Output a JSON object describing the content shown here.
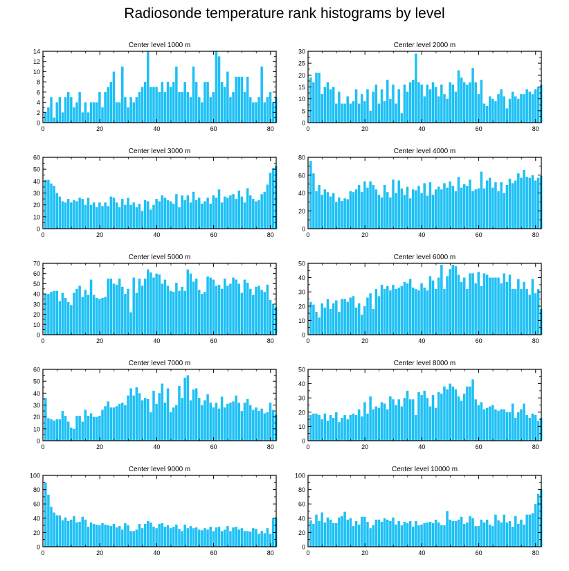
{
  "title": "Radiosonde temperature rank histograms by level",
  "bar_color": "#1ec0f5",
  "axis_color": "#000000",
  "chart_data": [
    {
      "type": "bar",
      "title": "Center level 1000 m",
      "xlim": [
        0,
        82
      ],
      "ylim": [
        0,
        14
      ],
      "xticks": [
        0,
        20,
        40,
        60,
        80
      ],
      "yticks": [
        0,
        2,
        4,
        6,
        8,
        10,
        12,
        14
      ],
      "x_start": 1,
      "values": [
        2,
        3,
        5,
        1,
        4,
        5,
        2,
        5,
        6,
        5,
        3,
        4,
        6,
        2,
        4,
        2,
        4,
        4,
        4,
        6,
        3,
        6,
        7,
        8,
        10,
        4,
        4,
        11,
        5,
        3,
        5,
        4,
        5,
        6,
        7,
        8,
        14,
        7,
        7,
        7,
        6,
        8,
        6,
        8,
        7,
        8,
        11,
        6,
        6,
        8,
        6,
        5,
        11,
        8,
        5,
        4,
        8,
        8,
        5,
        6,
        14,
        13,
        8,
        7,
        10,
        5,
        6,
        9,
        9,
        9,
        6,
        9,
        5,
        4,
        4,
        5,
        11,
        4,
        5,
        6,
        4,
        5
      ]
    },
    {
      "type": "bar",
      "title": "Center level 2000 m",
      "xlim": [
        0,
        82
      ],
      "ylim": [
        0,
        30
      ],
      "xticks": [
        0,
        20,
        40,
        60,
        80
      ],
      "yticks": [
        0,
        5,
        10,
        15,
        20,
        25,
        30
      ],
      "x_start": 1,
      "values": [
        19,
        17,
        21,
        21,
        12,
        15,
        17,
        14,
        15,
        8,
        13,
        8,
        8,
        11,
        8,
        9,
        14,
        8,
        12,
        9,
        14,
        5,
        13,
        16,
        8,
        14,
        9,
        18,
        10,
        16,
        8,
        14,
        4,
        16,
        13,
        17,
        18,
        29,
        17,
        16,
        11,
        16,
        14,
        17,
        15,
        11,
        16,
        12,
        10,
        17,
        16,
        13,
        22,
        19,
        17,
        16,
        17,
        23,
        17,
        12,
        18,
        8,
        7,
        11,
        10,
        9,
        12,
        14,
        11,
        6,
        10,
        13,
        11,
        10,
        12,
        12,
        14,
        13,
        12,
        14,
        15,
        16
      ]
    },
    {
      "type": "bar",
      "title": "Center level 3000 m",
      "xlim": [
        0,
        82
      ],
      "ylim": [
        0,
        60
      ],
      "xticks": [
        0,
        20,
        40,
        60,
        80
      ],
      "yticks": [
        0,
        10,
        20,
        30,
        40,
        50,
        60
      ],
      "x_start": 1,
      "values": [
        41,
        41,
        38,
        36,
        30,
        27,
        23,
        22,
        25,
        22,
        24,
        23,
        26,
        25,
        20,
        26,
        20,
        22,
        18,
        22,
        19,
        22,
        19,
        27,
        26,
        22,
        18,
        25,
        20,
        26,
        20,
        22,
        18,
        21,
        15,
        24,
        23,
        16,
        20,
        25,
        23,
        28,
        26,
        24,
        23,
        21,
        29,
        18,
        28,
        24,
        28,
        22,
        31,
        24,
        26,
        21,
        23,
        26,
        21,
        28,
        26,
        33,
        22,
        27,
        26,
        28,
        29,
        25,
        32,
        27,
        22,
        34,
        28,
        25,
        23,
        24,
        29,
        31,
        37,
        47,
        51,
        53
      ]
    },
    {
      "type": "bar",
      "title": "Center level 4000 m",
      "xlim": [
        0,
        82
      ],
      "ylim": [
        0,
        80
      ],
      "xticks": [
        0,
        20,
        40,
        60,
        80
      ],
      "yticks": [
        0,
        20,
        40,
        60,
        80
      ],
      "x_start": 1,
      "values": [
        76,
        62,
        42,
        49,
        38,
        44,
        41,
        36,
        40,
        30,
        35,
        31,
        34,
        33,
        42,
        41,
        44,
        49,
        41,
        53,
        46,
        53,
        49,
        44,
        38,
        35,
        49,
        41,
        35,
        55,
        40,
        54,
        45,
        38,
        47,
        34,
        44,
        43,
        48,
        40,
        51,
        37,
        52,
        38,
        44,
        47,
        44,
        51,
        46,
        53,
        48,
        42,
        58,
        46,
        50,
        48,
        55,
        42,
        44,
        45,
        64,
        45,
        54,
        57,
        46,
        52,
        42,
        52,
        40,
        49,
        56,
        51,
        54,
        62,
        57,
        66,
        58,
        57,
        60,
        54,
        57,
        59
      ]
    },
    {
      "type": "bar",
      "title": "Center level 5000 m",
      "xlim": [
        0,
        82
      ],
      "ylim": [
        0,
        70
      ],
      "xticks": [
        0,
        20,
        40,
        60,
        80
      ],
      "yticks": [
        0,
        10,
        20,
        30,
        40,
        50,
        60,
        70
      ],
      "x_start": 1,
      "values": [
        40,
        40,
        42,
        43,
        43,
        33,
        41,
        36,
        32,
        29,
        41,
        45,
        48,
        37,
        44,
        39,
        54,
        39,
        36,
        35,
        36,
        37,
        55,
        55,
        50,
        49,
        55,
        47,
        40,
        45,
        22,
        56,
        41,
        55,
        48,
        55,
        64,
        61,
        56,
        60,
        59,
        50,
        54,
        48,
        43,
        42,
        51,
        43,
        47,
        43,
        64,
        60,
        52,
        55,
        44,
        40,
        42,
        57,
        56,
        54,
        48,
        49,
        45,
        55,
        48,
        50,
        56,
        54,
        50,
        41,
        54,
        51,
        45,
        39,
        47,
        48,
        44,
        42,
        49,
        34,
        30,
        27
      ]
    },
    {
      "type": "bar",
      "title": "Center level 6000 m",
      "xlim": [
        0,
        82
      ],
      "ylim": [
        0,
        50
      ],
      "xticks": [
        0,
        20,
        40,
        60,
        80
      ],
      "yticks": [
        0,
        10,
        20,
        30,
        40,
        50
      ],
      "x_start": 1,
      "values": [
        23,
        21,
        16,
        12,
        22,
        19,
        25,
        18,
        22,
        24,
        16,
        25,
        25,
        23,
        26,
        27,
        19,
        22,
        14,
        20,
        26,
        29,
        18,
        32,
        27,
        35,
        32,
        34,
        31,
        35,
        32,
        33,
        34,
        37,
        36,
        39,
        33,
        32,
        31,
        36,
        33,
        31,
        41,
        38,
        32,
        40,
        49,
        32,
        41,
        46,
        49,
        48,
        42,
        37,
        40,
        32,
        43,
        43,
        36,
        44,
        34,
        43,
        42,
        40,
        40,
        40,
        40,
        36,
        43,
        37,
        42,
        32,
        32,
        39,
        32,
        37,
        32,
        28,
        39,
        29,
        32,
        18
      ]
    },
    {
      "type": "bar",
      "title": "Center level 7000 m",
      "xlim": [
        0,
        82
      ],
      "ylim": [
        0,
        60
      ],
      "xticks": [
        0,
        20,
        40,
        60,
        80
      ],
      "yticks": [
        0,
        10,
        20,
        30,
        40,
        50,
        60
      ],
      "x_start": 1,
      "values": [
        36,
        19,
        18,
        17,
        18,
        18,
        25,
        21,
        16,
        11,
        10,
        21,
        21,
        16,
        26,
        21,
        23,
        20,
        20,
        21,
        26,
        29,
        33,
        28,
        28,
        29,
        31,
        32,
        30,
        38,
        44,
        38,
        45,
        40,
        34,
        36,
        35,
        24,
        42,
        31,
        40,
        48,
        32,
        44,
        24,
        28,
        30,
        46,
        36,
        53,
        55,
        34,
        43,
        44,
        36,
        30,
        34,
        39,
        32,
        28,
        32,
        27,
        37,
        28,
        31,
        32,
        33,
        38,
        32,
        25,
        32,
        35,
        30,
        26,
        28,
        25,
        27,
        23,
        24,
        32,
        26,
        22
      ]
    },
    {
      "type": "bar",
      "title": "Center level 8000 m",
      "xlim": [
        0,
        82
      ],
      "ylim": [
        0,
        50
      ],
      "xticks": [
        0,
        20,
        40,
        60,
        80
      ],
      "yticks": [
        0,
        10,
        20,
        30,
        40,
        50
      ],
      "x_start": 1,
      "values": [
        18,
        19,
        19,
        18,
        15,
        19,
        14,
        18,
        16,
        20,
        13,
        16,
        18,
        15,
        18,
        19,
        18,
        22,
        17,
        27,
        19,
        31,
        22,
        24,
        23,
        27,
        26,
        22,
        31,
        29,
        25,
        29,
        24,
        30,
        35,
        29,
        29,
        18,
        34,
        32,
        35,
        30,
        24,
        32,
        23,
        34,
        33,
        38,
        36,
        40,
        38,
        36,
        31,
        28,
        33,
        38,
        38,
        43,
        29,
        25,
        27,
        22,
        23,
        24,
        25,
        22,
        21,
        22,
        22,
        20,
        20,
        26,
        16,
        20,
        22,
        26,
        18,
        16,
        19,
        18,
        14,
        16
      ]
    },
    {
      "type": "bar",
      "title": "Center level 9000 m",
      "xlim": [
        0,
        82
      ],
      "ylim": [
        0,
        100
      ],
      "xticks": [
        0,
        20,
        40,
        60,
        80
      ],
      "yticks": [
        0,
        20,
        40,
        60,
        80,
        100
      ],
      "x_start": 1,
      "values": [
        90,
        73,
        56,
        48,
        44,
        44,
        37,
        41,
        36,
        38,
        43,
        34,
        35,
        42,
        38,
        28,
        34,
        32,
        31,
        30,
        33,
        31,
        30,
        29,
        32,
        27,
        29,
        24,
        33,
        30,
        22,
        22,
        24,
        32,
        26,
        32,
        36,
        34,
        28,
        26,
        32,
        33,
        28,
        30,
        26,
        28,
        31,
        25,
        22,
        31,
        26,
        29,
        26,
        27,
        24,
        23,
        26,
        24,
        28,
        22,
        27,
        28,
        22,
        24,
        29,
        22,
        27,
        28,
        24,
        26,
        22,
        22,
        21,
        26,
        25,
        18,
        22,
        19,
        26,
        18,
        40,
        41
      ]
    },
    {
      "type": "bar",
      "title": "Center level 10000 m",
      "xlim": [
        0,
        82
      ],
      "ylim": [
        0,
        100
      ],
      "xticks": [
        0,
        20,
        40,
        60,
        80
      ],
      "yticks": [
        0,
        20,
        40,
        60,
        80,
        100
      ],
      "x_start": 1,
      "values": [
        37,
        32,
        45,
        36,
        48,
        34,
        41,
        38,
        33,
        33,
        41,
        43,
        49,
        38,
        40,
        29,
        36,
        31,
        42,
        42,
        35,
        26,
        30,
        38,
        38,
        35,
        40,
        38,
        36,
        41,
        31,
        36,
        30,
        35,
        33,
        36,
        28,
        36,
        30,
        31,
        33,
        34,
        35,
        33,
        38,
        34,
        30,
        30,
        50,
        38,
        36,
        36,
        38,
        42,
        32,
        34,
        43,
        40,
        29,
        29,
        38,
        34,
        38,
        31,
        29,
        45,
        37,
        34,
        45,
        34,
        36,
        28,
        43,
        32,
        38,
        31,
        45,
        45,
        47,
        60,
        74,
        81
      ]
    }
  ]
}
